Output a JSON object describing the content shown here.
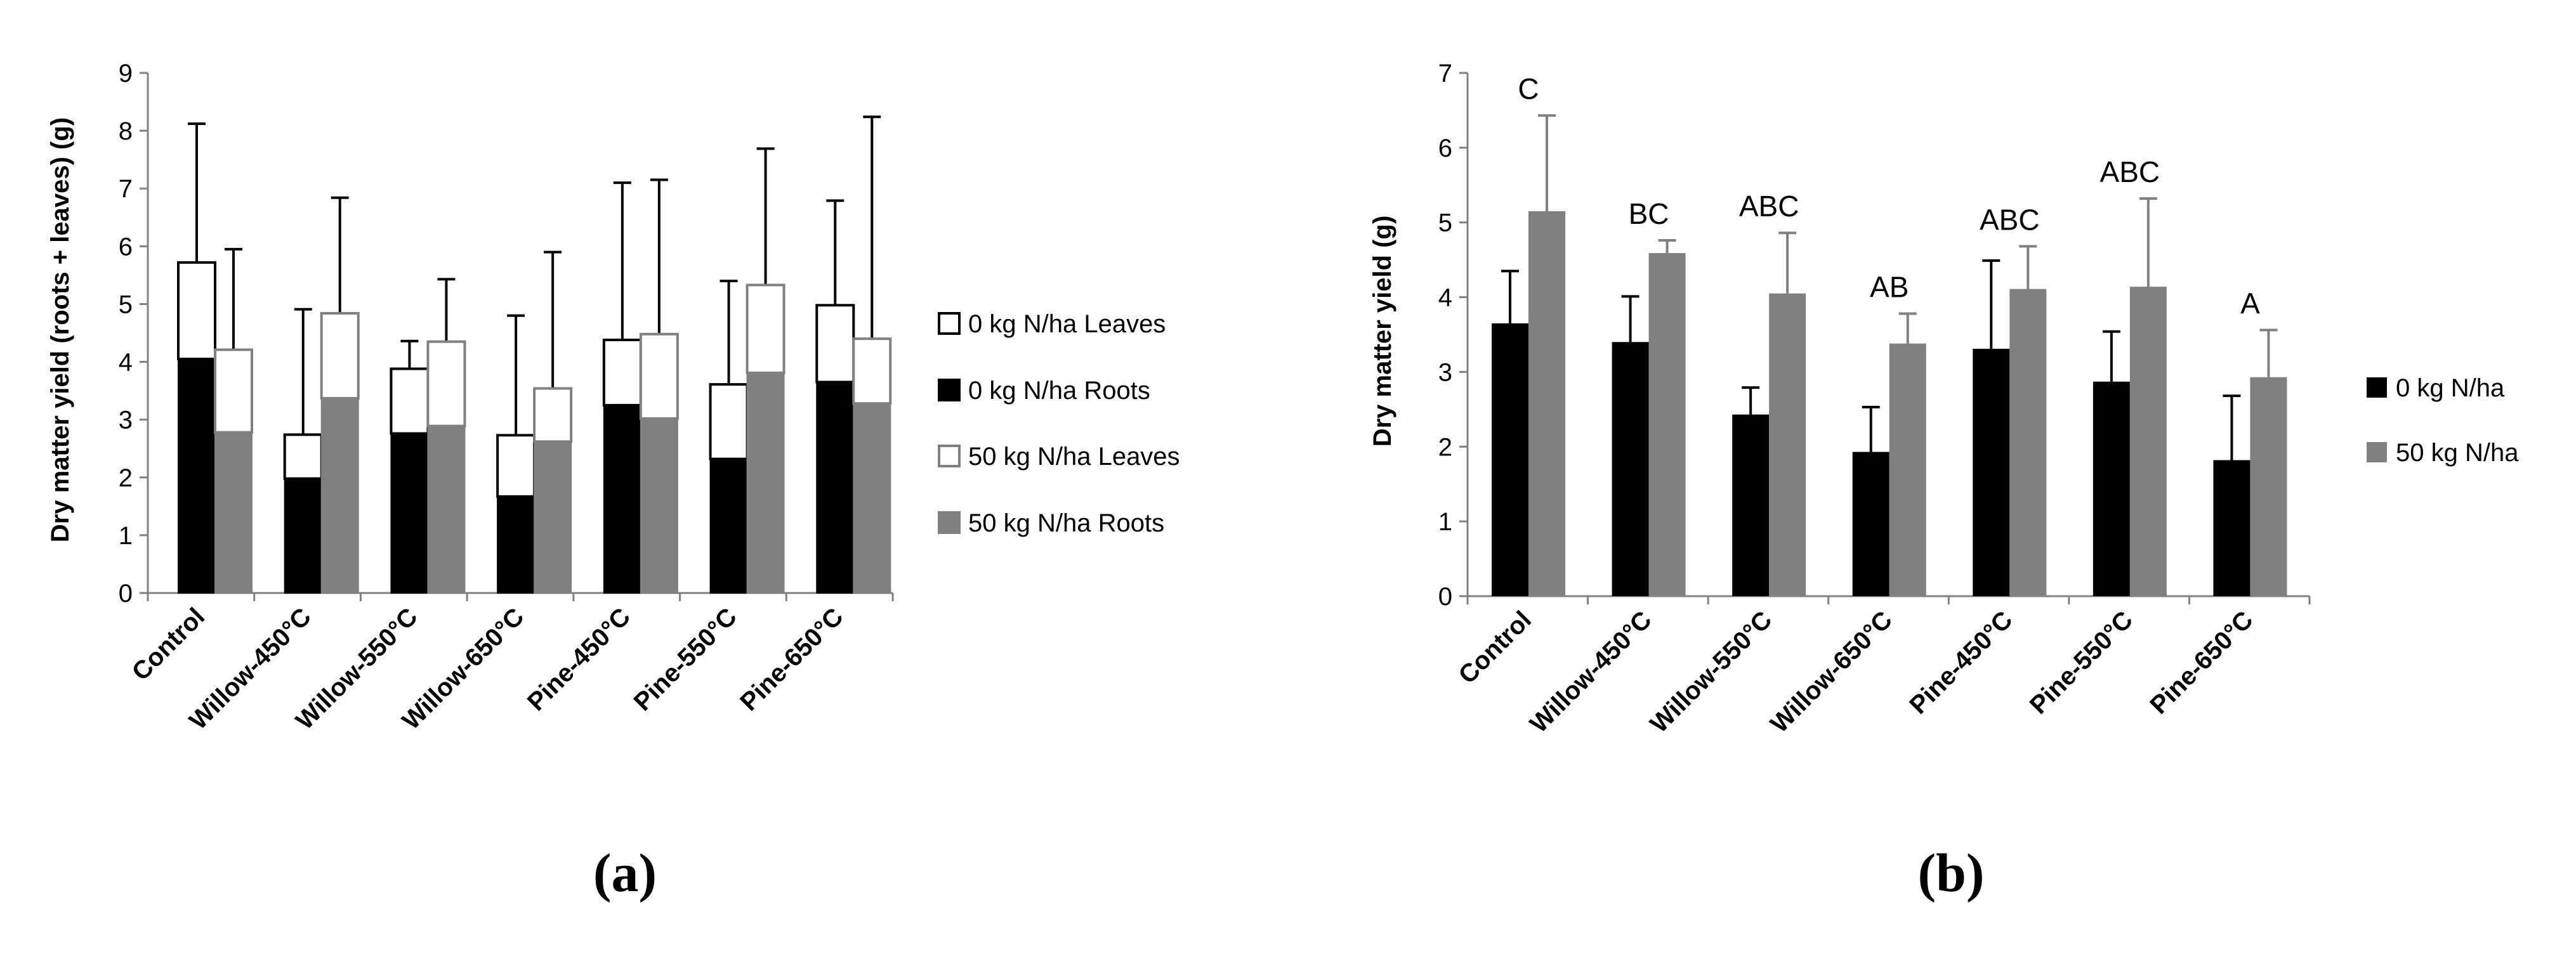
{
  "chart_data": [
    {
      "id": "a",
      "type": "stacked-bar",
      "caption": "(a)",
      "ylabel": "Dry matter yield (roots + leaves) (g)",
      "xlabel": "",
      "ylim": [
        0,
        9
      ],
      "ytick_step": 1,
      "yticks": [
        "0",
        "1",
        "2",
        "3",
        "4",
        "5",
        "6",
        "7",
        "8",
        "9"
      ],
      "categories": [
        "Control",
        "Willow-450°C",
        "Willow-550°C",
        "Willow-650°C",
        "Pine-450°C",
        "Pine-550°C",
        "Pine-650°C"
      ],
      "groups": [
        {
          "name": "0 kg N/ha",
          "roots": [
            4.05,
            1.98,
            2.76,
            1.67,
            3.25,
            2.32,
            3.65
          ],
          "total": [
            5.72,
            2.74,
            3.88,
            2.73,
            4.38,
            3.61,
            4.98
          ],
          "error_top": [
            8.12,
            4.91,
            4.36,
            4.8,
            7.1,
            5.4,
            6.79
          ]
        },
        {
          "name": "50 kg N/ha",
          "roots": [
            2.78,
            3.37,
            2.89,
            2.62,
            3.02,
            3.81,
            3.28
          ],
          "total": [
            4.21,
            4.84,
            4.35,
            3.54,
            4.48,
            5.33,
            4.4
          ],
          "error_top": [
            5.95,
            6.84,
            5.43,
            5.9,
            7.15,
            7.69,
            8.24
          ]
        }
      ],
      "legend": [
        {
          "label": "0 kg N/ha Leaves",
          "fill": "#ffffff",
          "stroke": "#000000"
        },
        {
          "label": "0 kg N/ha Roots",
          "fill": "#000000",
          "stroke": "#000000"
        },
        {
          "label": "50 kg N/ha Leaves",
          "fill": "#ffffff",
          "stroke": "#808080"
        },
        {
          "label": "50 kg N/ha Roots",
          "fill": "#808080",
          "stroke": "#808080"
        }
      ],
      "legend_position": "right"
    },
    {
      "id": "b",
      "type": "bar",
      "caption": "(b)",
      "ylabel": "Dry matter yield (g)",
      "xlabel": "",
      "ylim": [
        0,
        7
      ],
      "ytick_step": 1,
      "yticks": [
        "0",
        "1",
        "2",
        "3",
        "4",
        "5",
        "6",
        "7"
      ],
      "categories": [
        "Control",
        "Willow-450°C",
        "Willow-550°C",
        "Willow-650°C",
        "Pine-450°C",
        "Pine-550°C",
        "Pine-650°C"
      ],
      "series": [
        {
          "name": "0 kg N/ha",
          "color": "#000000",
          "values": [
            3.65,
            3.4,
            2.43,
            1.93,
            3.31,
            2.87,
            1.82
          ],
          "error_top": [
            4.35,
            4.01,
            2.79,
            2.53,
            4.49,
            3.54,
            2.68
          ]
        },
        {
          "name": "50 kg N/ha",
          "color": "#808080",
          "values": [
            5.15,
            4.59,
            4.05,
            3.38,
            4.11,
            4.14,
            2.93
          ],
          "error_top": [
            6.43,
            4.76,
            4.86,
            3.78,
            4.68,
            5.32,
            3.56
          ]
        }
      ],
      "annotations": [
        "C",
        "BC",
        "ABC",
        "AB",
        "ABC",
        "ABC",
        "A"
      ],
      "legend": [
        {
          "label": "0 kg N/ha",
          "fill": "#000000"
        },
        {
          "label": "50 kg N/ha",
          "fill": "#808080"
        }
      ],
      "legend_position": "right"
    }
  ]
}
